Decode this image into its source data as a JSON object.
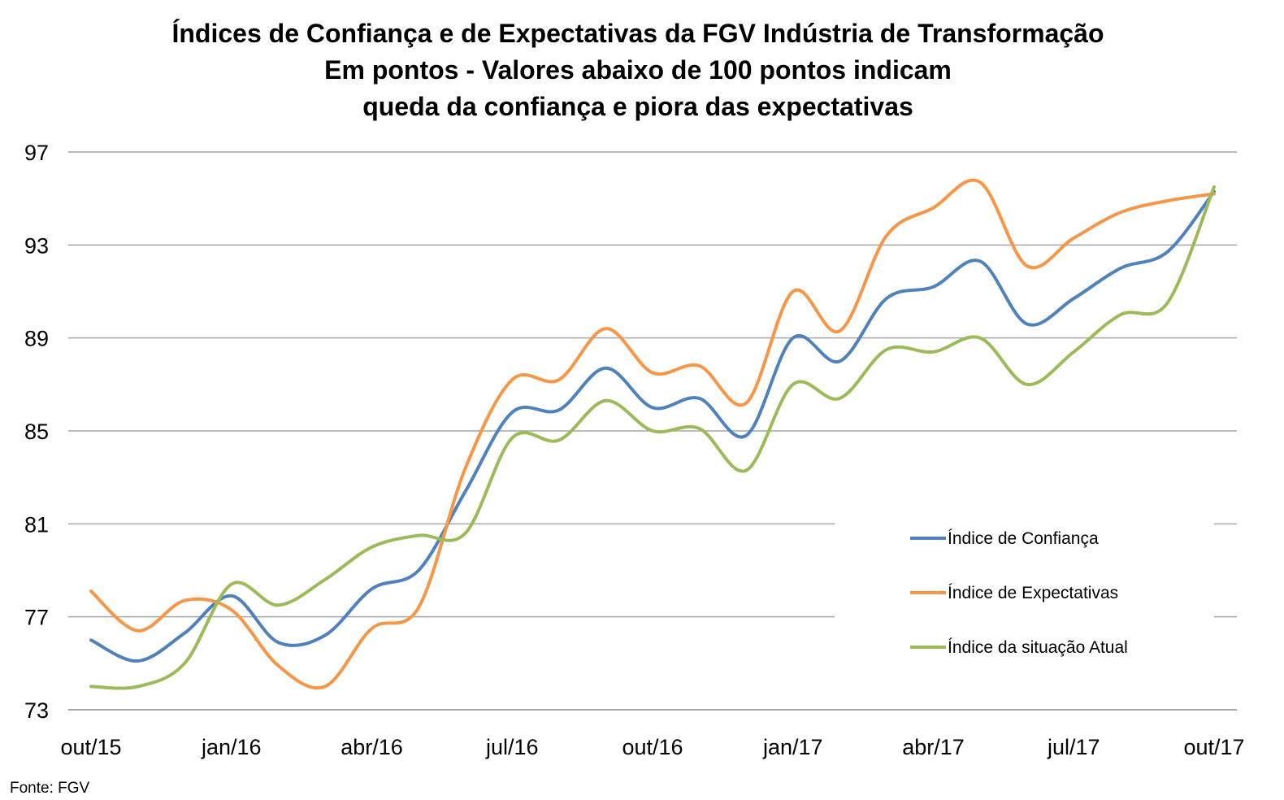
{
  "chart_data": {
    "type": "line",
    "title_lines": [
      "Índices de Confiança e de Expectativas da FGV Indústria de Transformação",
      "Em pontos - Valores abaixo de 100 pontos indicam",
      "queda da confiança e piora das expectativas"
    ],
    "source": "Fonte: FGV",
    "ylim": [
      73,
      97
    ],
    "yticks": [
      73,
      77,
      81,
      85,
      89,
      93,
      97
    ],
    "ytick_labels": [
      "73",
      "77",
      "81",
      "85",
      "89",
      "93",
      "97"
    ],
    "x_tick_labels": [
      "out/15",
      "jan/16",
      "abr/16",
      "jul/16",
      "out/16",
      "jan/17",
      "abr/17",
      "jul/17",
      "out/17"
    ],
    "x": [
      "out/15",
      "nov/15",
      "dez/15",
      "jan/16",
      "fev/16",
      "mar/16",
      "abr/16",
      "mai/16",
      "jun/16",
      "jul/16",
      "ago/16",
      "set/16",
      "out/16",
      "nov/16",
      "dez/16",
      "jan/17",
      "fev/17",
      "mar/17",
      "abr/17",
      "mai/17",
      "jun/17",
      "jul/17",
      "ago/17",
      "set/17",
      "out/17"
    ],
    "grid": true,
    "legend_position": "right",
    "series": [
      {
        "name": "Índice de Confiança",
        "color": "#4f81bd",
        "values": [
          76.0,
          75.1,
          76.3,
          77.9,
          75.9,
          76.2,
          78.2,
          79.0,
          82.4,
          85.8,
          85.9,
          87.7,
          86.0,
          86.4,
          84.8,
          89.0,
          88.0,
          90.7,
          91.2,
          92.3,
          89.6,
          90.7,
          92.0,
          92.7,
          95.3
        ]
      },
      {
        "name": "Índice de Expectativas",
        "color": "#f79646",
        "values": [
          78.1,
          76.4,
          77.7,
          77.3,
          74.9,
          74.0,
          76.5,
          77.4,
          83.4,
          87.2,
          87.2,
          89.4,
          87.5,
          87.8,
          86.2,
          91.0,
          89.3,
          93.4,
          94.6,
          95.7,
          92.1,
          93.3,
          94.4,
          94.9,
          95.2
        ]
      },
      {
        "name": "Índice da situação Atual",
        "color": "#9bbb59",
        "values": [
          74.0,
          74.0,
          75.0,
          78.4,
          77.5,
          78.6,
          80.0,
          80.5,
          80.6,
          84.7,
          84.6,
          86.3,
          85.0,
          85.1,
          83.3,
          87.0,
          86.4,
          88.5,
          88.4,
          89.0,
          87.0,
          88.4,
          90.0,
          90.5,
          95.5
        ]
      }
    ]
  }
}
